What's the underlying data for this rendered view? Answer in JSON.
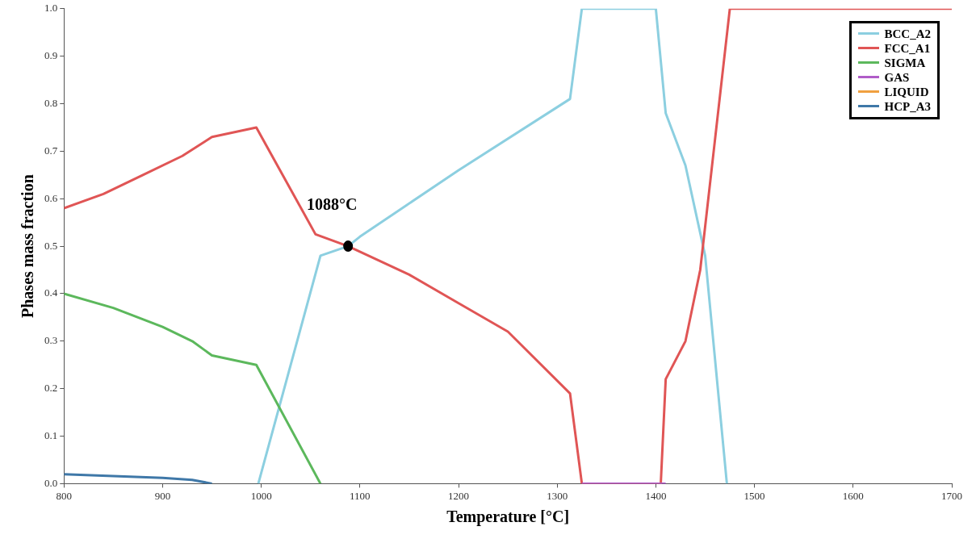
{
  "chart_data": {
    "type": "line",
    "xlabel": "Temperature [°C]",
    "ylabel": "Phases mass fraction",
    "xlim": [
      800,
      1700
    ],
    "xticks": [
      800,
      900,
      1000,
      1100,
      1200,
      1300,
      1400,
      1500,
      1600,
      1700
    ],
    "ylim": [
      0,
      1
    ],
    "yticks": [
      {
        "value": 0,
        "label": "0.0"
      },
      0.1,
      0.2,
      0.3,
      0.4,
      0.5,
      0.6,
      0.7,
      0.8,
      0.9,
      {
        "value": 1,
        "label": "1.0"
      }
    ],
    "grid": false,
    "legend": "top right",
    "marker": "none",
    "line_style": "solid",
    "annotations": [
      {
        "text": "1088°C",
        "x": 1088,
        "y": 0.5
      }
    ],
    "series": [
      {
        "name": "BCC_A2",
        "color": "#8ccfe0",
        "x": [
          997,
          1060,
          1088,
          1100,
          1200,
          1313,
          1325,
          1400,
          1410,
          1430,
          1450,
          1472
        ],
        "values": [
          0,
          0.48,
          0.5,
          0.52,
          0.66,
          0.81,
          1.0,
          1.0,
          0.78,
          0.67,
          0.48,
          0
        ]
      },
      {
        "name": "FCC_A1",
        "color": "#e05555",
        "x": [
          800,
          840,
          880,
          920,
          950,
          995,
          1055,
          1088,
          1150,
          1200,
          1250,
          1313,
          1325,
          1405,
          1410,
          1430,
          1445,
          1475,
          1700
        ],
        "values": [
          0.58,
          0.61,
          0.65,
          0.69,
          0.73,
          0.75,
          0.525,
          0.5,
          0.44,
          0.38,
          0.32,
          0.19,
          0,
          0,
          0.22,
          0.3,
          0.45,
          1.0,
          1.0
        ]
      },
      {
        "name": "SIGMA",
        "color": "#5cb85c",
        "x": [
          800,
          850,
          900,
          930,
          950,
          995,
          1060
        ],
        "values": [
          0.4,
          0.37,
          0.33,
          0.3,
          0.27,
          0.25,
          0
        ]
      },
      {
        "name": "GAS",
        "color": "#b05cc8",
        "x": [
          1325,
          1410
        ],
        "values": [
          0,
          0
        ]
      },
      {
        "name": "LIQUID",
        "color": "#f0a040"
      },
      {
        "name": "HCP_A3",
        "color": "#3f78a8",
        "x": [
          800,
          900,
          930,
          950
        ],
        "values": [
          0.02,
          0.012,
          0.008,
          0
        ]
      }
    ]
  }
}
